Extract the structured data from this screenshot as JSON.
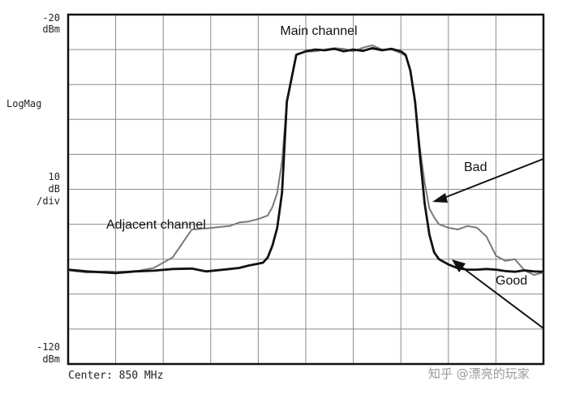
{
  "chart_data": {
    "type": "line",
    "x": [
      0,
      4,
      8,
      10,
      14,
      18,
      22,
      26,
      29,
      34,
      36,
      38,
      40,
      41,
      42,
      43,
      44,
      45,
      46,
      48,
      50,
      52,
      54,
      56,
      58,
      60,
      62,
      64,
      66,
      68,
      70,
      71,
      72,
      73,
      74,
      75,
      76,
      77,
      78,
      80,
      82,
      84,
      86,
      88,
      90,
      92,
      94,
      96,
      98,
      100
    ],
    "series": [
      {
        "name": "Good",
        "values": [
          -93,
          -93.5,
          -93.8,
          -94,
          -93.5,
          -93.3,
          -92.8,
          -92.7,
          -93.5,
          -92.8,
          -92.5,
          -91.8,
          -91.3,
          -91,
          -89.5,
          -86,
          -81,
          -71,
          -45,
          -31.5,
          -30.5,
          -30,
          -30.2,
          -29.8,
          -30.5,
          -30,
          -30.4,
          -29.6,
          -30.2,
          -29.8,
          -30.5,
          -31.5,
          -36,
          -45,
          -60,
          -74,
          -83,
          -88,
          -90,
          -91.5,
          -92.6,
          -93,
          -93,
          -92.8,
          -93,
          -93.4,
          -93.6,
          -93.2,
          -93.5,
          -93.6
        ]
      },
      {
        "name": "Bad",
        "values": [
          -93.2,
          -93.8,
          -93.5,
          -93.6,
          -93.5,
          -92.5,
          -89.5,
          -81.5,
          -81.2,
          -80.5,
          -79.5,
          -79.2,
          -78.5,
          -78,
          -77.5,
          -75,
          -71,
          -62,
          -45,
          -31.5,
          -30.6,
          -30.5,
          -30,
          -29.6,
          -29.8,
          -30.5,
          -29.5,
          -28.8,
          -30,
          -30,
          -31,
          -31.8,
          -36,
          -45,
          -58,
          -68,
          -75.5,
          -78,
          -80,
          -81,
          -81.5,
          -80.5,
          -81,
          -83.5,
          -89,
          -90.5,
          -90,
          -93.2,
          -94.5,
          -93.8
        ]
      }
    ],
    "yticklabels": [
      "-20",
      "dBm",
      "10",
      "dB",
      "/div",
      "-120",
      "dBm"
    ],
    "ylabel": "LogMag",
    "xlabel": "Center: 850 MHz",
    "ylim": [
      -120,
      -20
    ],
    "xlim": [
      0,
      100
    ],
    "grid": true,
    "annotations": [
      "Main channel",
      "Adjacent channel",
      "Bad",
      "Good"
    ]
  },
  "watermark": "知乎 @漂亮的玩家"
}
